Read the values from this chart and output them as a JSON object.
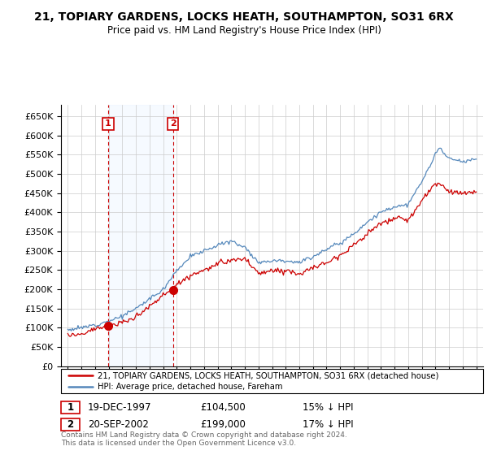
{
  "title": "21, TOPIARY GARDENS, LOCKS HEATH, SOUTHAMPTON, SO31 6RX",
  "subtitle": "Price paid vs. HM Land Registry's House Price Index (HPI)",
  "ylim": [
    0,
    680000
  ],
  "yticks": [
    0,
    50000,
    100000,
    150000,
    200000,
    250000,
    300000,
    350000,
    400000,
    450000,
    500000,
    550000,
    600000,
    650000
  ],
  "sale1": {
    "date_num": 1997.96,
    "price": 104500,
    "label": "1"
  },
  "sale2": {
    "date_num": 2002.72,
    "price": 199000,
    "label": "2"
  },
  "legend_red": "21, TOPIARY GARDENS, LOCKS HEATH, SOUTHAMPTON, SO31 6RX (detached house)",
  "legend_blue": "HPI: Average price, detached house, Fareham",
  "table": [
    {
      "num": "1",
      "date": "19-DEC-1997",
      "price": "£104,500",
      "rel": "15% ↓ HPI"
    },
    {
      "num": "2",
      "date": "20-SEP-2002",
      "price": "£199,000",
      "rel": "17% ↓ HPI"
    }
  ],
  "footer": "Contains HM Land Registry data © Crown copyright and database right 2024.\nThis data is licensed under the Open Government Licence v3.0.",
  "red_color": "#cc0000",
  "blue_color": "#5588bb",
  "shade_color": "#ddeeff",
  "grid_color": "#cccccc",
  "background_color": "#ffffff"
}
